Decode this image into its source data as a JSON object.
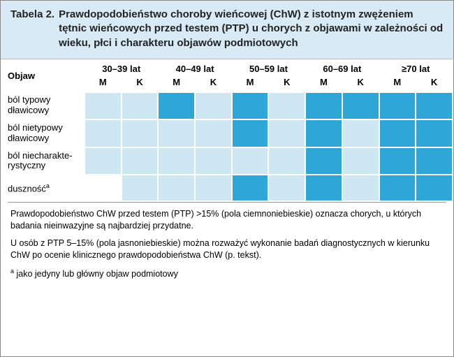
{
  "colors": {
    "header_bg": "#d7eaf5",
    "dark_cell": "#2ea6d8",
    "light_cell": "#cfe6f3",
    "white": "#ffffff"
  },
  "title_label": "Tabela 2.",
  "title_text": "Prawdopodobieństwo choroby wieńcowej (ChW) z istotnym zwężeniem tętnic wieńcowych przed testem (PTP) u chorych z objawami w zależności od wieku, płci i charakteru objawów podmiotowych",
  "col_objaw": "Objaw",
  "age_groups": [
    "30–39 lat",
    "40–49 lat",
    "50–59 lat",
    "60–69 lat",
    "≥70 lat"
  ],
  "sex_labels": {
    "m": "M",
    "k": "K"
  },
  "rows": [
    {
      "label_html": "ból typowy<br>dławicowy",
      "cells": [
        "L",
        "L",
        "D",
        "L",
        "D",
        "L",
        "D",
        "D",
        "D",
        "D"
      ]
    },
    {
      "label_html": "ból nietypowy<br>dławicowy",
      "cells": [
        "L",
        "L",
        "L",
        "L",
        "D",
        "L",
        "D",
        "L",
        "D",
        "D"
      ]
    },
    {
      "label_html": "ból niecharakte-<br>rystyczny",
      "cells": [
        "L",
        "L",
        "L",
        "L",
        "L",
        "L",
        "D",
        "L",
        "D",
        "D"
      ]
    },
    {
      "label_html": "duszność<span class=\"sup\">a</span>",
      "cells": [
        "W",
        "L",
        "L",
        "L",
        "D",
        "L",
        "D",
        "L",
        "D",
        "D"
      ]
    }
  ],
  "footer": {
    "p1": "Prawdopodobieństwo ChW przed testem (PTP) >15% (pola ciemnoniebieskie) oznacza chorych, u których badania nieinwazyjne są najbardziej przydatne.",
    "p2": "U osób z PTP 5–15% (pola jasnoniebieskie) można rozważyć wykonanie badań diagnostycznych w kierunku ChW po ocenie klinicznego prawdopodobieństwa ChW (p. tekst).",
    "p3_html": "<span class=\"sup\">a</span> jako jedyny lub główny objaw podmiotowy"
  }
}
